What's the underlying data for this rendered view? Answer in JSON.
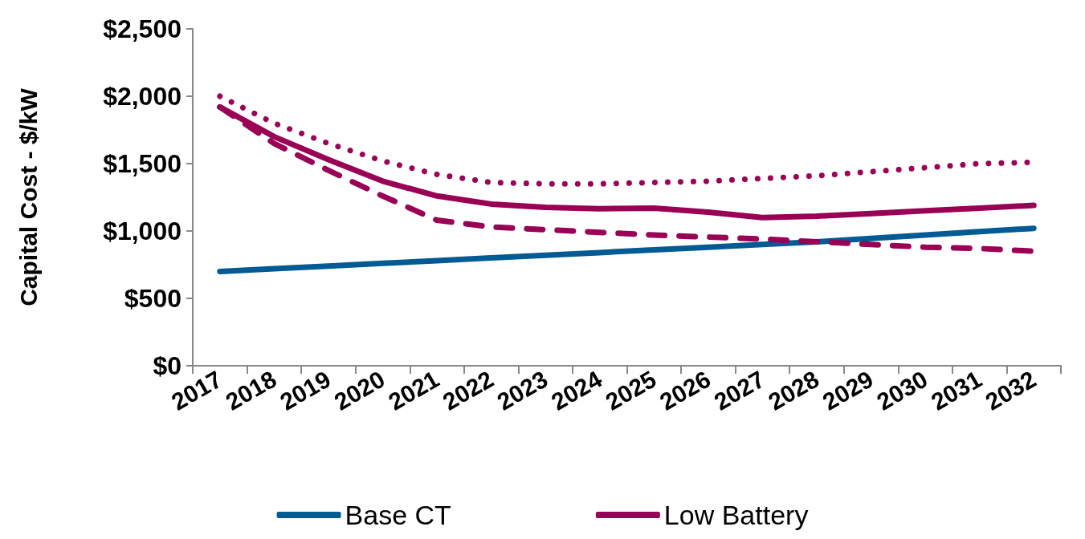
{
  "chart_data": {
    "type": "line",
    "ylabel": "Capital Cost - $/kW",
    "categories": [
      "2017",
      "2018",
      "2019",
      "2020",
      "2021",
      "2022",
      "2023",
      "2024",
      "2025",
      "2026",
      "2027",
      "2028",
      "2029",
      "2030",
      "2031",
      "2032"
    ],
    "series": [
      {
        "name": "Base CT",
        "color": "#005a94",
        "line_style": "solid",
        "values": [
          700,
          720,
          740,
          760,
          780,
          800,
          820,
          840,
          860,
          880,
          900,
          920,
          945,
          970,
          995,
          1020
        ]
      },
      {
        "name": "Low Battery",
        "color": "#990055",
        "line_style": "dashed",
        "values": [
          1920,
          1650,
          1450,
          1260,
          1080,
          1030,
          1010,
          990,
          970,
          955,
          940,
          920,
          900,
          880,
          870,
          850
        ]
      },
      {
        "color": "#990055",
        "line_style": "solid",
        "values": [
          1920,
          1700,
          1530,
          1370,
          1260,
          1200,
          1175,
          1165,
          1170,
          1140,
          1100,
          1110,
          1130,
          1150,
          1170,
          1190
        ]
      },
      {
        "color": "#990055",
        "line_style": "dotted",
        "values": [
          2000,
          1800,
          1650,
          1520,
          1420,
          1360,
          1350,
          1350,
          1360,
          1370,
          1390,
          1410,
          1440,
          1470,
          1500,
          1510
        ]
      }
    ],
    "ylim": [
      0,
      2500
    ],
    "yticks": [
      {
        "value": 0,
        "label": "$0"
      },
      {
        "value": 500,
        "label": "$500"
      },
      {
        "value": 1000,
        "label": "$1,000"
      },
      {
        "value": 1500,
        "label": "$1,500"
      },
      {
        "value": 2000,
        "label": "$2,000"
      },
      {
        "value": 2500,
        "label": "$2,500"
      }
    ],
    "grid": false,
    "legend": "bottom",
    "marker": "none"
  }
}
